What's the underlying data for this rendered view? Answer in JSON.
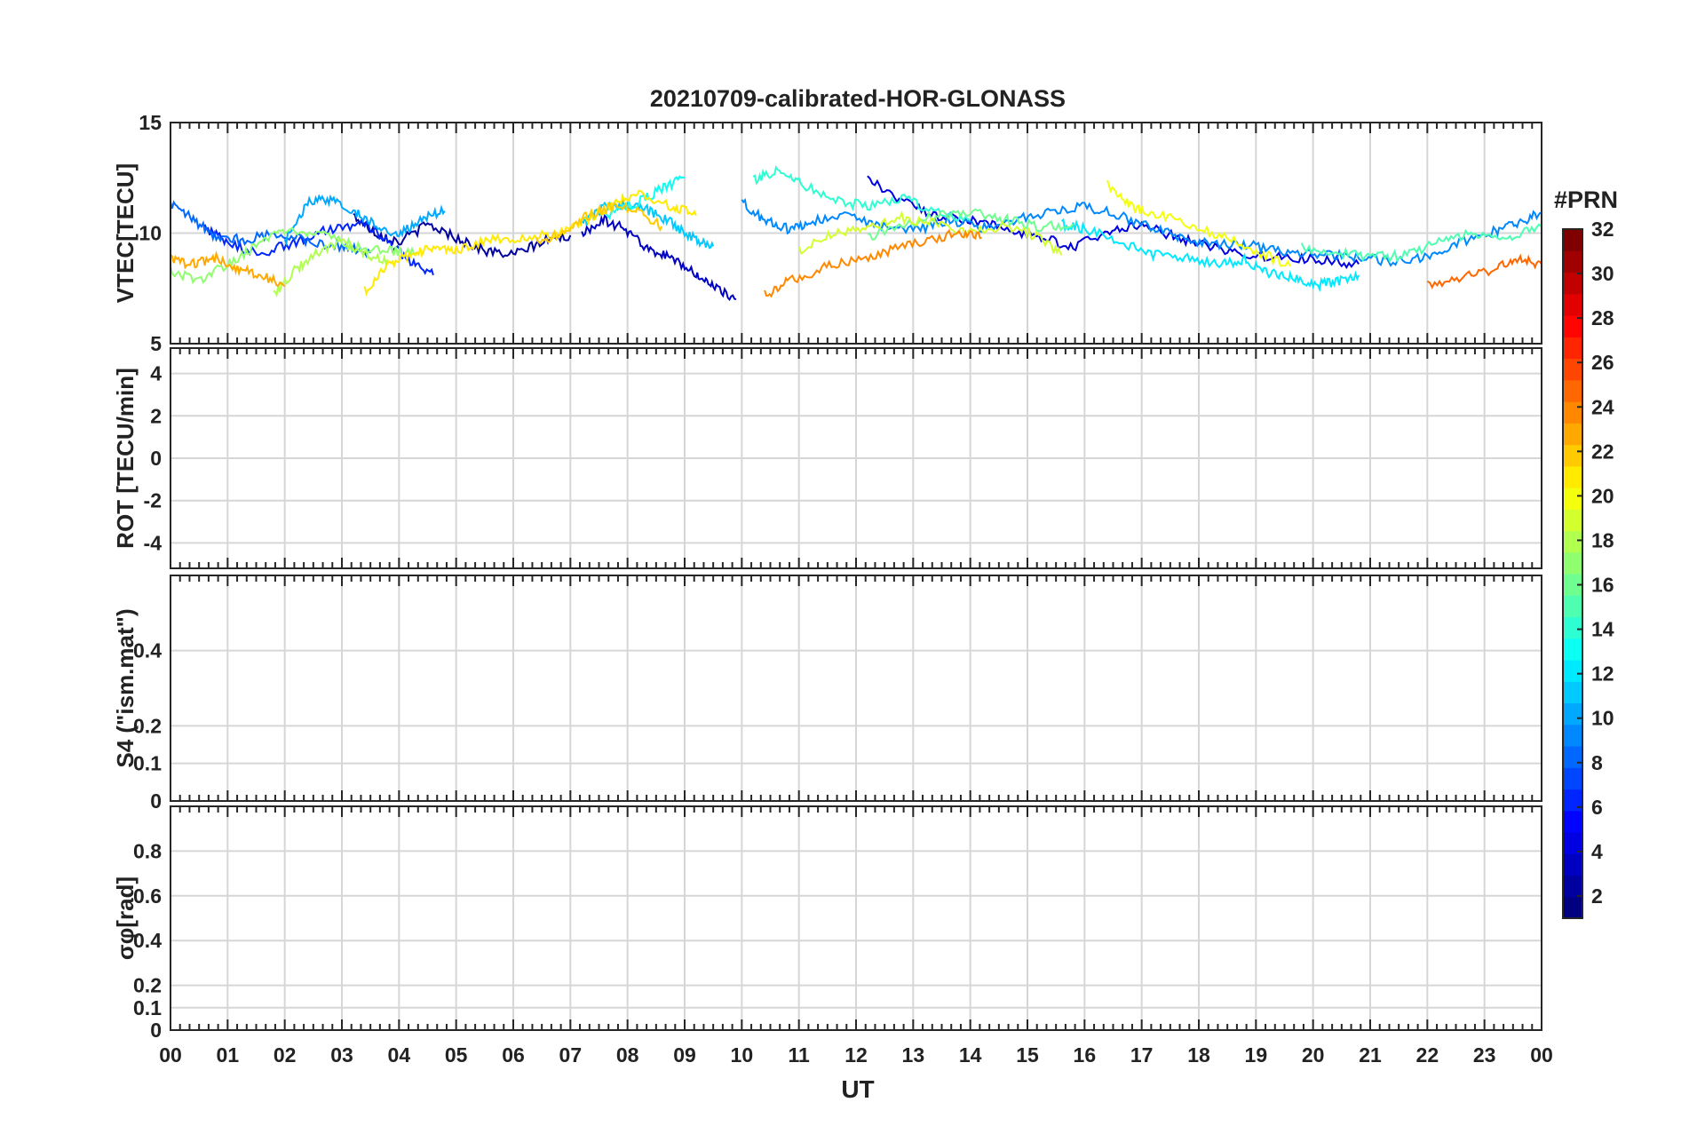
{
  "chart_data": {
    "type": "line",
    "title": "20210709-calibrated-HOR-GLONASS",
    "xlabel": "UT",
    "x_tick_labels": [
      "00",
      "01",
      "02",
      "03",
      "04",
      "05",
      "06",
      "07",
      "08",
      "09",
      "10",
      "11",
      "12",
      "13",
      "14",
      "15",
      "16",
      "17",
      "18",
      "19",
      "20",
      "21",
      "22",
      "23",
      "00"
    ],
    "xlim_hours": [
      0,
      24
    ],
    "grid": true,
    "colorbar": {
      "label": "#PRN",
      "range": [
        1,
        32
      ],
      "tick_labels": [
        "2",
        "4",
        "6",
        "8",
        "10",
        "12",
        "14",
        "16",
        "18",
        "20",
        "22",
        "24",
        "26",
        "28",
        "30",
        "32"
      ],
      "colormap": "jet"
    },
    "panels": [
      {
        "ylabel": "VTEC[TECU]",
        "ylim": [
          5,
          15
        ],
        "y_ticks": [
          5,
          10,
          15
        ],
        "y_tick_labels": [
          "5",
          "10",
          "15"
        ],
        "series": [
          {
            "prn": 2,
            "points": [
              [
                3.2,
                10.8
              ],
              [
                3.6,
                10.0
              ],
              [
                4.0,
                9.6
              ],
              [
                4.5,
                10.4
              ],
              [
                5.0,
                9.8
              ],
              [
                5.5,
                9.2
              ],
              [
                6.0,
                9.0
              ],
              [
                6.5,
                9.6
              ],
              [
                7.0,
                9.9
              ]
            ]
          },
          {
            "prn": 3,
            "points": [
              [
                7.2,
                10.0
              ],
              [
                7.6,
                10.6
              ],
              [
                8.0,
                10.1
              ],
              [
                8.4,
                9.2
              ],
              [
                8.8,
                8.8
              ],
              [
                9.2,
                8.2
              ],
              [
                9.5,
                7.6
              ],
              [
                9.9,
                7.0
              ]
            ]
          },
          {
            "prn": 4,
            "points": [
              [
                12.2,
                12.5
              ],
              [
                12.8,
                11.5
              ],
              [
                13.4,
                10.8
              ],
              [
                14.0,
                10.6
              ],
              [
                14.6,
                10.2
              ],
              [
                15.2,
                9.8
              ],
              [
                15.8,
                9.4
              ],
              [
                16.4,
                10.0
              ],
              [
                17.0,
                10.4
              ],
              [
                17.6,
                9.8
              ],
              [
                18.2,
                9.4
              ],
              [
                18.8,
                9.0
              ],
              [
                19.5,
                8.9
              ],
              [
                20.2,
                8.8
              ],
              [
                20.8,
                8.6
              ]
            ]
          },
          {
            "prn": 6,
            "points": [
              [
                0.6,
                10.3
              ],
              [
                1.0,
                9.5
              ],
              [
                1.6,
                9.1
              ],
              [
                2.2,
                9.6
              ],
              [
                2.8,
                10.2
              ],
              [
                3.4,
                10.4
              ],
              [
                3.8,
                9.6
              ],
              [
                4.2,
                8.7
              ],
              [
                4.6,
                8.1
              ]
            ]
          },
          {
            "prn": 8,
            "points": [
              [
                0.0,
                11.3
              ],
              [
                0.4,
                10.6
              ],
              [
                0.8,
                9.8
              ],
              [
                1.3,
                9.7
              ],
              [
                1.9,
                10.0
              ],
              [
                2.4,
                9.6
              ],
              [
                3.0,
                9.4
              ],
              [
                3.5,
                9.1
              ]
            ]
          },
          {
            "prn": 9,
            "points": [
              [
                10.0,
                11.4
              ],
              [
                10.4,
                10.6
              ],
              [
                10.8,
                10.2
              ],
              [
                11.2,
                10.5
              ],
              [
                11.8,
                10.8
              ],
              [
                12.4,
                10.4
              ],
              [
                13.0,
                10.1
              ],
              [
                13.6,
                10.6
              ],
              [
                14.2,
                10.2
              ],
              [
                14.8,
                10.6
              ],
              [
                15.4,
                11.0
              ],
              [
                16.0,
                11.2
              ],
              [
                16.6,
                10.8
              ],
              [
                17.2,
                10.2
              ],
              [
                17.8,
                9.7
              ],
              [
                18.4,
                9.5
              ],
              [
                19.0,
                9.4
              ],
              [
                19.6,
                9.1
              ],
              [
                20.2,
                9.0
              ],
              [
                20.8,
                8.9
              ],
              [
                21.4,
                8.7
              ],
              [
                22.0,
                8.9
              ],
              [
                22.6,
                9.6
              ],
              [
                23.2,
                10.1
              ],
              [
                23.6,
                10.5
              ],
              [
                24.0,
                10.9
              ]
            ]
          },
          {
            "prn": 10,
            "points": [
              [
                2.0,
                9.6
              ],
              [
                2.4,
                11.4
              ],
              [
                2.8,
                11.5
              ],
              [
                3.2,
                11.0
              ],
              [
                3.6,
                10.3
              ],
              [
                4.0,
                10.0
              ],
              [
                4.4,
                10.6
              ],
              [
                4.8,
                11.0
              ]
            ]
          },
          {
            "prn": 11,
            "points": [
              [
                7.2,
                10.4
              ],
              [
                7.6,
                11.2
              ],
              [
                8.0,
                11.3
              ],
              [
                8.4,
                11.0
              ],
              [
                8.8,
                10.4
              ],
              [
                9.2,
                9.7
              ],
              [
                9.5,
                9.4
              ]
            ]
          },
          {
            "prn": 12,
            "points": [
              [
                15.6,
                10.4
              ],
              [
                16.0,
                10.2
              ],
              [
                16.6,
                9.6
              ],
              [
                17.2,
                9.0
              ],
              [
                17.8,
                8.9
              ],
              [
                18.4,
                8.6
              ],
              [
                18.8,
                8.8
              ],
              [
                19.2,
                8.2
              ],
              [
                19.6,
                8.0
              ],
              [
                20.0,
                7.6
              ],
              [
                20.4,
                7.8
              ],
              [
                20.8,
                8.1
              ]
            ]
          },
          {
            "prn": 13,
            "points": [
              [
                7.6,
                10.8
              ],
              [
                8.2,
                11.4
              ],
              [
                8.6,
                12.0
              ],
              [
                9.0,
                12.5
              ]
            ]
          },
          {
            "prn": 14,
            "points": [
              [
                10.2,
                12.4
              ],
              [
                10.6,
                12.8
              ],
              [
                11.0,
                12.3
              ],
              [
                11.6,
                11.5
              ],
              [
                12.2,
                11.2
              ],
              [
                12.8,
                11.6
              ],
              [
                13.4,
                11.0
              ],
              [
                14.0,
                10.6
              ]
            ]
          },
          {
            "prn": 15,
            "points": [
              [
                19.8,
                9.4
              ],
              [
                20.4,
                9.1
              ],
              [
                21.0,
                8.9
              ],
              [
                21.6,
                9.0
              ],
              [
                22.2,
                9.6
              ],
              [
                22.8,
                10.0
              ],
              [
                23.4,
                9.8
              ],
              [
                24.0,
                10.3
              ]
            ]
          },
          {
            "prn": 16,
            "points": [
              [
                12.2,
                9.8
              ],
              [
                12.8,
                10.4
              ],
              [
                13.4,
                10.8
              ],
              [
                14.0,
                11.0
              ],
              [
                14.6,
                10.6
              ],
              [
                15.2,
                10.3
              ],
              [
                15.8,
                10.4
              ]
            ]
          },
          {
            "prn": 17,
            "points": [
              [
                0.0,
                8.3
              ],
              [
                0.5,
                7.8
              ],
              [
                1.0,
                8.6
              ],
              [
                1.5,
                9.4
              ],
              [
                2.0,
                10.1
              ],
              [
                2.6,
                10.0
              ],
              [
                3.2,
                9.4
              ],
              [
                3.8,
                9.2
              ],
              [
                4.3,
                9.1
              ]
            ]
          },
          {
            "prn": 18,
            "points": [
              [
                1.8,
                7.2
              ],
              [
                2.2,
                8.4
              ],
              [
                2.6,
                9.2
              ],
              [
                3.0,
                9.6
              ],
              [
                3.4,
                9.0
              ],
              [
                3.8,
                8.8
              ]
            ]
          },
          {
            "prn": 19,
            "points": [
              [
                11.0,
                9.2
              ],
              [
                11.6,
                10.0
              ],
              [
                12.2,
                10.2
              ],
              [
                12.8,
                10.7
              ],
              [
                13.4,
                10.4
              ],
              [
                14.0,
                10.0
              ],
              [
                14.6,
                10.3
              ],
              [
                15.2,
                9.8
              ],
              [
                15.6,
                9.0
              ]
            ]
          },
          {
            "prn": 20,
            "points": [
              [
                16.4,
                12.2
              ],
              [
                16.8,
                11.2
              ],
              [
                17.2,
                10.9
              ],
              [
                17.8,
                10.4
              ],
              [
                18.4,
                9.9
              ],
              [
                19.0,
                9.2
              ],
              [
                19.6,
                8.5
              ]
            ]
          },
          {
            "prn": 21,
            "points": [
              [
                3.4,
                7.4
              ],
              [
                3.8,
                8.6
              ],
              [
                4.2,
                9.0
              ],
              [
                4.6,
                9.4
              ],
              [
                5.0,
                9.2
              ],
              [
                5.6,
                9.7
              ],
              [
                6.2,
                9.8
              ],
              [
                6.8,
                10.0
              ],
              [
                7.4,
                10.8
              ],
              [
                7.8,
                11.4
              ],
              [
                8.2,
                11.8
              ],
              [
                8.8,
                11.2
              ],
              [
                9.2,
                10.8
              ]
            ]
          },
          {
            "prn": 22,
            "points": [
              [
                6.4,
                9.6
              ],
              [
                6.9,
                10.1
              ],
              [
                7.3,
                10.8
              ],
              [
                7.8,
                11.2
              ],
              [
                8.2,
                11.0
              ],
              [
                8.6,
                10.3
              ]
            ]
          },
          {
            "prn": 23,
            "points": [
              [
                0.0,
                8.8
              ],
              [
                0.4,
                8.6
              ],
              [
                0.8,
                8.9
              ],
              [
                1.2,
                8.4
              ],
              [
                1.6,
                8.1
              ],
              [
                2.0,
                7.6
              ]
            ]
          },
          {
            "prn": 24,
            "points": [
              [
                10.4,
                7.2
              ],
              [
                10.8,
                7.8
              ],
              [
                11.4,
                8.4
              ],
              [
                12.0,
                8.8
              ],
              [
                12.6,
                9.2
              ],
              [
                13.2,
                9.7
              ],
              [
                13.8,
                10.0
              ],
              [
                14.2,
                9.8
              ]
            ]
          },
          {
            "prn": 25,
            "points": [
              [
                22.0,
                7.6
              ],
              [
                22.6,
                8.0
              ],
              [
                23.2,
                8.4
              ],
              [
                23.6,
                8.8
              ],
              [
                24.0,
                8.6
              ]
            ]
          }
        ]
      },
      {
        "ylabel": "ROT [TECU/min]",
        "ylim": [
          -5.2,
          5.2
        ],
        "y_ticks": [
          -4,
          -2,
          0,
          2,
          4
        ],
        "y_tick_labels": [
          "-4",
          "-2",
          "0",
          "2",
          "4"
        ]
      },
      {
        "ylabel": "S4 (\"ism.mat\")",
        "ylim": [
          0,
          0.6
        ],
        "y_ticks": [
          0,
          0.1,
          0.2,
          0.4
        ],
        "y_tick_labels": [
          "0",
          "0.1",
          "0.2",
          "0.4"
        ]
      },
      {
        "ylabel": "σφ[rad]",
        "ylim": [
          0,
          1
        ],
        "y_ticks": [
          0,
          0.1,
          0.2,
          0.4,
          0.6,
          0.8
        ],
        "y_tick_labels": [
          "0",
          "0.1",
          "0.2",
          "0.4",
          "0.6",
          "0.8"
        ]
      }
    ]
  }
}
